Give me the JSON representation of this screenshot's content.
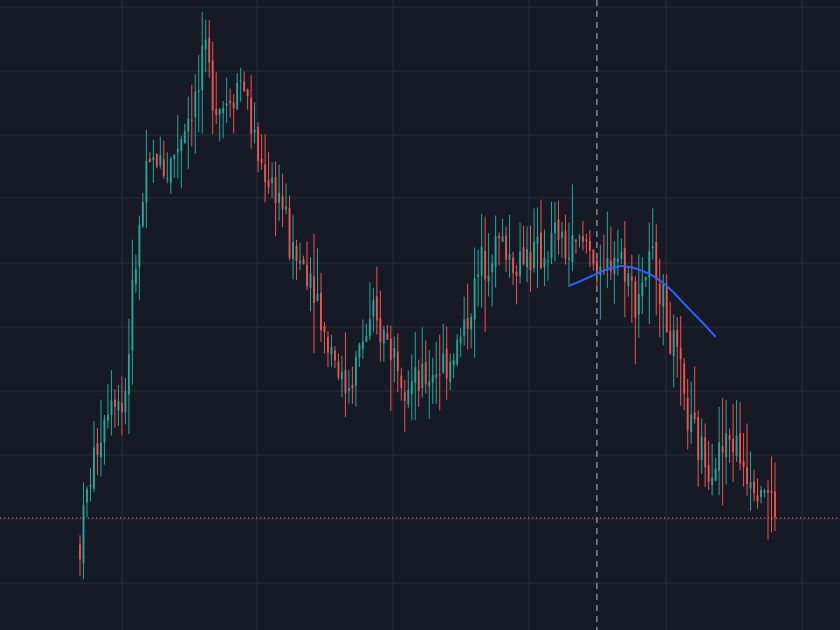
{
  "theme": {
    "background": "#161a25",
    "grid": "#2a2e39",
    "up": "#26a69a",
    "down": "#ef5350",
    "ma_line": "#2962ff",
    "crosshair": "#9598a1",
    "last_price_line": "#ef5350"
  },
  "chart_data": {
    "type": "candlestick",
    "title": "",
    "xlabel": "",
    "ylabel": "",
    "x_range": [
      0,
      199
    ],
    "ylim": [
      0,
      100
    ],
    "grid": true,
    "legend": "none",
    "crosshair_index": 148,
    "last_price": 14.5,
    "candles": [],
    "ma_series": [
      {
        "i": 140,
        "v": 53.2
      },
      {
        "i": 143,
        "v": 53.9
      },
      {
        "i": 146,
        "v": 54.7
      },
      {
        "i": 149,
        "v": 55.5
      },
      {
        "i": 152,
        "v": 56.2
      },
      {
        "i": 155,
        "v": 56.5
      },
      {
        "i": 158,
        "v": 56.3
      },
      {
        "i": 161,
        "v": 55.7
      },
      {
        "i": 164,
        "v": 54.9
      },
      {
        "i": 167,
        "v": 53.7
      },
      {
        "i": 170,
        "v": 52.1
      },
      {
        "i": 173,
        "v": 50.2
      },
      {
        "i": 176,
        "v": 48.4
      },
      {
        "i": 179,
        "v": 46.6
      },
      {
        "i": 182,
        "v": 44.7
      }
    ]
  }
}
